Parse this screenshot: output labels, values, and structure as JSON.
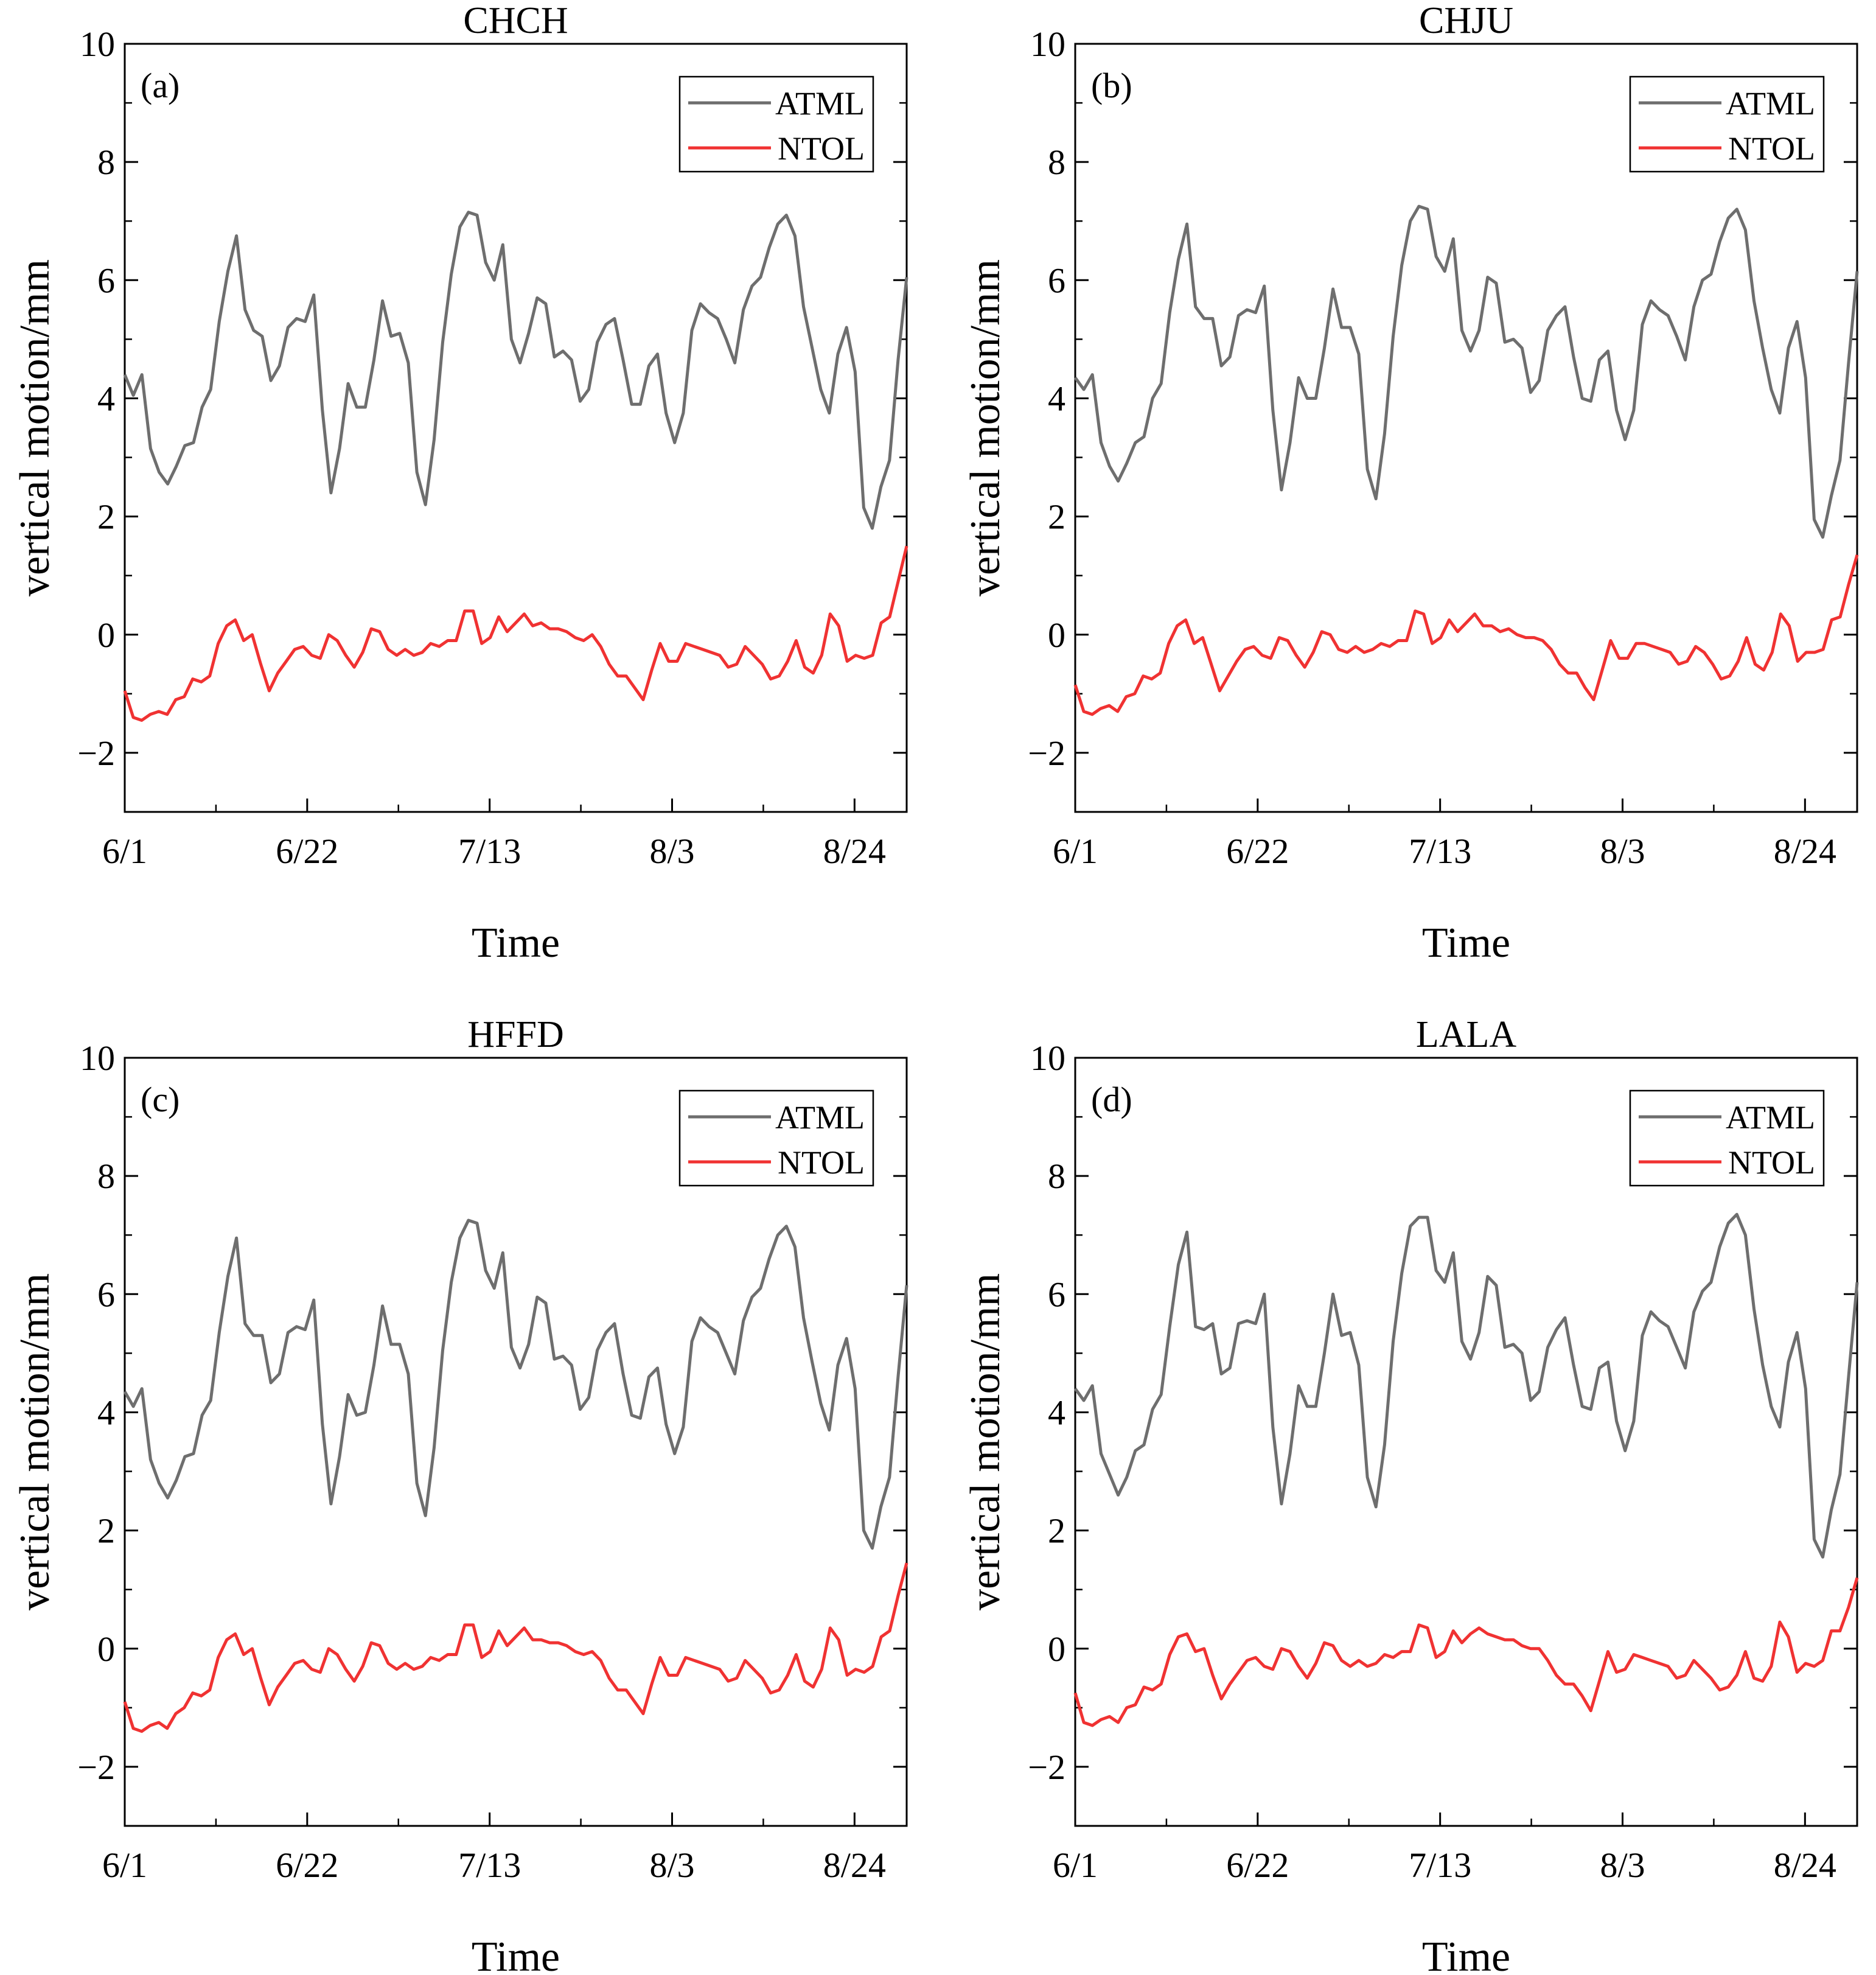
{
  "chart_data": [
    {
      "type": "line",
      "panel_label": "(a)",
      "title": "CHCH",
      "xlabel": "Time",
      "ylabel": "vertical motion/mm",
      "ylim": [
        -3,
        10
      ],
      "yticks": [
        -2,
        0,
        2,
        4,
        6,
        8,
        10
      ],
      "ytick_labels": [
        "−2",
        "0",
        "2",
        "4",
        "6",
        "8",
        "10"
      ],
      "xlim": [
        0,
        90
      ],
      "xticks": [
        0,
        21,
        42,
        63,
        84
      ],
      "xtick_labels": [
        "6/1",
        "6/22",
        "7/13",
        "8/3",
        "8/24"
      ],
      "legend": [
        "ATML",
        "NTOL"
      ],
      "legend_position": "top-right",
      "series": [
        {
          "name": "ATML",
          "color": "#6e6e6e",
          "values": [
            4.4,
            4.05,
            4.4,
            3.15,
            2.75,
            2.55,
            2.85,
            3.2,
            3.25,
            3.85,
            4.15,
            5.3,
            6.15,
            6.75,
            5.5,
            5.15,
            5.05,
            4.3,
            4.55,
            5.2,
            5.35,
            5.3,
            5.75,
            3.8,
            2.4,
            3.15,
            4.25,
            3.85,
            3.85,
            4.65,
            5.65,
            5.05,
            5.1,
            4.6,
            2.75,
            2.2,
            3.3,
            4.95,
            6.1,
            6.9,
            7.15,
            7.1,
            6.3,
            6.0,
            6.6,
            5.0,
            4.6,
            5.1,
            5.7,
            5.6,
            4.7,
            4.8,
            4.65,
            3.95,
            4.15,
            4.95,
            5.25,
            5.35,
            4.65,
            3.9,
            3.9,
            4.55,
            4.75,
            3.75,
            3.25,
            3.75,
            5.15,
            5.6,
            5.45,
            5.35,
            5.0,
            4.6,
            5.5,
            5.9,
            6.05,
            6.55,
            6.95,
            7.1,
            6.75,
            5.55,
            4.85,
            4.15,
            3.75,
            4.75,
            5.2,
            4.45,
            2.15,
            1.8,
            2.5,
            2.95,
            4.65,
            6.05
          ]
        },
        {
          "name": "NTOL",
          "color": "#f03232",
          "values": [
            -0.95,
            -1.4,
            -1.45,
            -1.35,
            -1.3,
            -1.35,
            -1.1,
            -1.05,
            -0.75,
            -0.8,
            -0.7,
            -0.15,
            0.15,
            0.25,
            -0.1,
            0.0,
            -0.5,
            -0.95,
            -0.65,
            -0.45,
            -0.25,
            -0.2,
            -0.35,
            -0.4,
            0.0,
            -0.1,
            -0.35,
            -0.55,
            -0.3,
            0.1,
            0.05,
            -0.25,
            -0.35,
            -0.25,
            -0.35,
            -0.3,
            -0.15,
            -0.2,
            -0.1,
            -0.1,
            0.4,
            0.4,
            -0.15,
            -0.05,
            0.3,
            0.05,
            0.2,
            0.35,
            0.15,
            0.2,
            0.1,
            0.1,
            0.05,
            -0.05,
            -0.1,
            0.0,
            -0.2,
            -0.5,
            -0.7,
            -0.7,
            -0.9,
            -1.1,
            -0.6,
            -0.15,
            -0.45,
            -0.45,
            -0.15,
            -0.2,
            -0.25,
            -0.3,
            -0.35,
            -0.55,
            -0.5,
            -0.2,
            -0.35,
            -0.5,
            -0.75,
            -0.7,
            -0.45,
            -0.1,
            -0.55,
            -0.65,
            -0.35,
            0.35,
            0.15,
            -0.45,
            -0.35,
            -0.4,
            -0.35,
            0.2,
            0.3,
            0.9,
            1.5
          ]
        }
      ]
    },
    {
      "type": "line",
      "panel_label": "(b)",
      "title": "CHJU",
      "xlabel": "Time",
      "ylabel": "vertical motion/mm",
      "ylim": [
        -3,
        10
      ],
      "yticks": [
        -2,
        0,
        2,
        4,
        6,
        8,
        10
      ],
      "ytick_labels": [
        "−2",
        "0",
        "2",
        "4",
        "6",
        "8",
        "10"
      ],
      "xlim": [
        0,
        90
      ],
      "xticks": [
        0,
        21,
        42,
        63,
        84
      ],
      "xtick_labels": [
        "6/1",
        "6/22",
        "7/13",
        "8/3",
        "8/24"
      ],
      "legend": [
        "ATML",
        "NTOL"
      ],
      "legend_position": "top-right",
      "series": [
        {
          "name": "ATML",
          "color": "#6e6e6e",
          "values": [
            4.35,
            4.15,
            4.4,
            3.25,
            2.85,
            2.6,
            2.9,
            3.25,
            3.35,
            4.0,
            4.25,
            5.45,
            6.35,
            6.95,
            5.55,
            5.35,
            5.35,
            4.55,
            4.7,
            5.4,
            5.5,
            5.45,
            5.9,
            3.8,
            2.45,
            3.25,
            4.35,
            4.0,
            4.0,
            4.85,
            5.85,
            5.2,
            5.2,
            4.75,
            2.8,
            2.3,
            3.4,
            5.05,
            6.25,
            7.0,
            7.25,
            7.2,
            6.4,
            6.15,
            6.7,
            5.15,
            4.8,
            5.15,
            6.05,
            5.95,
            4.95,
            5.0,
            4.85,
            4.1,
            4.3,
            5.15,
            5.4,
            5.55,
            4.7,
            4.0,
            3.95,
            4.65,
            4.8,
            3.8,
            3.3,
            3.8,
            5.25,
            5.65,
            5.5,
            5.4,
            5.05,
            4.65,
            5.55,
            6.0,
            6.1,
            6.65,
            7.05,
            7.2,
            6.85,
            5.65,
            4.85,
            4.15,
            3.75,
            4.85,
            5.3,
            4.35,
            1.95,
            1.65,
            2.35,
            2.95,
            4.6,
            6.15
          ]
        },
        {
          "name": "NTOL",
          "color": "#f03232",
          "values": [
            -0.85,
            -1.3,
            -1.35,
            -1.25,
            -1.2,
            -1.3,
            -1.05,
            -1.0,
            -0.7,
            -0.75,
            -0.65,
            -0.15,
            0.15,
            0.25,
            -0.15,
            -0.05,
            -0.5,
            -0.95,
            -0.7,
            -0.45,
            -0.25,
            -0.2,
            -0.35,
            -0.4,
            -0.05,
            -0.1,
            -0.35,
            -0.55,
            -0.3,
            0.05,
            0.0,
            -0.25,
            -0.3,
            -0.2,
            -0.3,
            -0.25,
            -0.15,
            -0.2,
            -0.1,
            -0.1,
            0.4,
            0.35,
            -0.15,
            -0.05,
            0.25,
            0.05,
            0.2,
            0.35,
            0.15,
            0.15,
            0.05,
            0.1,
            0.0,
            -0.05,
            -0.05,
            -0.1,
            -0.25,
            -0.5,
            -0.65,
            -0.65,
            -0.9,
            -1.1,
            -0.6,
            -0.1,
            -0.4,
            -0.4,
            -0.15,
            -0.15,
            -0.2,
            -0.25,
            -0.3,
            -0.5,
            -0.45,
            -0.2,
            -0.3,
            -0.5,
            -0.75,
            -0.7,
            -0.45,
            -0.05,
            -0.5,
            -0.6,
            -0.3,
            0.35,
            0.15,
            -0.45,
            -0.3,
            -0.3,
            -0.25,
            0.25,
            0.3,
            0.85,
            1.35
          ]
        }
      ]
    },
    {
      "type": "line",
      "panel_label": "(c)",
      "title": "HFFD",
      "xlabel": "Time",
      "ylabel": "vertical motion/mm",
      "ylim": [
        -3,
        10
      ],
      "yticks": [
        -2,
        0,
        2,
        4,
        6,
        8,
        10
      ],
      "ytick_labels": [
        "−2",
        "0",
        "2",
        "4",
        "6",
        "8",
        "10"
      ],
      "xlim": [
        0,
        90
      ],
      "xticks": [
        0,
        21,
        42,
        63,
        84
      ],
      "xtick_labels": [
        "6/1",
        "6/22",
        "7/13",
        "8/3",
        "8/24"
      ],
      "legend": [
        "ATML",
        "NTOL"
      ],
      "legend_position": "top-right",
      "series": [
        {
          "name": "ATML",
          "color": "#6e6e6e",
          "values": [
            4.35,
            4.1,
            4.4,
            3.2,
            2.8,
            2.55,
            2.85,
            3.25,
            3.3,
            3.95,
            4.2,
            5.35,
            6.3,
            6.95,
            5.5,
            5.3,
            5.3,
            4.5,
            4.65,
            5.35,
            5.45,
            5.4,
            5.9,
            3.8,
            2.45,
            3.25,
            4.3,
            3.95,
            4.0,
            4.8,
            5.8,
            5.15,
            5.15,
            4.65,
            2.8,
            2.25,
            3.4,
            5.05,
            6.2,
            6.95,
            7.25,
            7.2,
            6.4,
            6.1,
            6.7,
            5.1,
            4.75,
            5.15,
            5.95,
            5.85,
            4.9,
            4.95,
            4.8,
            4.05,
            4.25,
            5.05,
            5.35,
            5.5,
            4.65,
            3.95,
            3.9,
            4.6,
            4.75,
            3.8,
            3.3,
            3.75,
            5.2,
            5.6,
            5.45,
            5.35,
            5.0,
            4.65,
            5.55,
            5.95,
            6.1,
            6.6,
            7.0,
            7.15,
            6.8,
            5.6,
            4.85,
            4.15,
            3.7,
            4.8,
            5.25,
            4.4,
            2.0,
            1.7,
            2.4,
            2.9,
            4.6,
            6.15
          ]
        },
        {
          "name": "NTOL",
          "color": "#f03232",
          "values": [
            -0.9,
            -1.35,
            -1.4,
            -1.3,
            -1.25,
            -1.35,
            -1.1,
            -1.0,
            -0.75,
            -0.8,
            -0.7,
            -0.15,
            0.15,
            0.25,
            -0.1,
            0.0,
            -0.5,
            -0.95,
            -0.65,
            -0.45,
            -0.25,
            -0.2,
            -0.35,
            -0.4,
            0.0,
            -0.1,
            -0.35,
            -0.55,
            -0.3,
            0.1,
            0.05,
            -0.25,
            -0.35,
            -0.25,
            -0.35,
            -0.3,
            -0.15,
            -0.2,
            -0.1,
            -0.1,
            0.4,
            0.4,
            -0.15,
            -0.05,
            0.3,
            0.05,
            0.2,
            0.35,
            0.15,
            0.15,
            0.1,
            0.1,
            0.05,
            -0.05,
            -0.1,
            -0.05,
            -0.2,
            -0.5,
            -0.7,
            -0.7,
            -0.9,
            -1.1,
            -0.6,
            -0.15,
            -0.45,
            -0.45,
            -0.15,
            -0.2,
            -0.25,
            -0.3,
            -0.35,
            -0.55,
            -0.5,
            -0.2,
            -0.35,
            -0.5,
            -0.75,
            -0.7,
            -0.45,
            -0.1,
            -0.55,
            -0.65,
            -0.35,
            0.35,
            0.15,
            -0.45,
            -0.35,
            -0.4,
            -0.3,
            0.2,
            0.3,
            0.9,
            1.45
          ]
        }
      ]
    },
    {
      "type": "line",
      "panel_label": "(d)",
      "title": "LALA",
      "xlabel": "Time",
      "ylabel": "vertical motion/mm",
      "ylim": [
        -3,
        10
      ],
      "yticks": [
        -2,
        0,
        2,
        4,
        6,
        8,
        10
      ],
      "ytick_labels": [
        "−2",
        "0",
        "2",
        "4",
        "6",
        "8",
        "10"
      ],
      "xlim": [
        0,
        90
      ],
      "xticks": [
        0,
        21,
        42,
        63,
        84
      ],
      "xtick_labels": [
        "6/1",
        "6/22",
        "7/13",
        "8/3",
        "8/24"
      ],
      "legend": [
        "ATML",
        "NTOL"
      ],
      "legend_position": "top-right",
      "series": [
        {
          "name": "ATML",
          "color": "#6e6e6e",
          "values": [
            4.4,
            4.2,
            4.45,
            3.3,
            2.95,
            2.6,
            2.9,
            3.35,
            3.45,
            4.05,
            4.3,
            5.45,
            6.5,
            7.05,
            5.45,
            5.4,
            5.5,
            4.65,
            4.75,
            5.5,
            5.55,
            5.5,
            6.0,
            3.75,
            2.45,
            3.3,
            4.45,
            4.1,
            4.1,
            5.0,
            6.0,
            5.3,
            5.35,
            4.8,
            2.9,
            2.4,
            3.45,
            5.2,
            6.35,
            7.15,
            7.3,
            7.3,
            6.4,
            6.2,
            6.7,
            5.2,
            4.9,
            5.35,
            6.3,
            6.15,
            5.1,
            5.15,
            5.0,
            4.2,
            4.35,
            5.1,
            5.4,
            5.6,
            4.8,
            4.1,
            4.05,
            4.75,
            4.85,
            3.85,
            3.35,
            3.85,
            5.3,
            5.7,
            5.55,
            5.45,
            5.1,
            4.75,
            5.7,
            6.05,
            6.2,
            6.8,
            7.2,
            7.35,
            7.0,
            5.75,
            4.8,
            4.1,
            3.75,
            4.85,
            5.35,
            4.4,
            1.85,
            1.55,
            2.35,
            2.95,
            4.6,
            6.2
          ]
        },
        {
          "name": "NTOL",
          "color": "#f03232",
          "values": [
            -0.75,
            -1.25,
            -1.3,
            -1.2,
            -1.15,
            -1.25,
            -1.0,
            -0.95,
            -0.65,
            -0.7,
            -0.6,
            -0.1,
            0.2,
            0.25,
            -0.05,
            0.0,
            -0.45,
            -0.85,
            -0.6,
            -0.4,
            -0.2,
            -0.15,
            -0.3,
            -0.35,
            0.0,
            -0.05,
            -0.3,
            -0.5,
            -0.25,
            0.1,
            0.05,
            -0.2,
            -0.3,
            -0.2,
            -0.3,
            -0.25,
            -0.1,
            -0.15,
            -0.05,
            -0.05,
            0.4,
            0.35,
            -0.15,
            -0.05,
            0.3,
            0.1,
            0.25,
            0.35,
            0.25,
            0.2,
            0.15,
            0.15,
            0.05,
            0.0,
            0.0,
            -0.2,
            -0.45,
            -0.6,
            -0.6,
            -0.8,
            -1.05,
            -0.55,
            -0.05,
            -0.4,
            -0.35,
            -0.1,
            -0.15,
            -0.2,
            -0.25,
            -0.3,
            -0.5,
            -0.45,
            -0.2,
            -0.35,
            -0.5,
            -0.7,
            -0.65,
            -0.45,
            -0.05,
            -0.5,
            -0.55,
            -0.3,
            0.45,
            0.2,
            -0.4,
            -0.25,
            -0.3,
            -0.2,
            0.3,
            0.3,
            0.7,
            1.2
          ]
        }
      ]
    }
  ]
}
